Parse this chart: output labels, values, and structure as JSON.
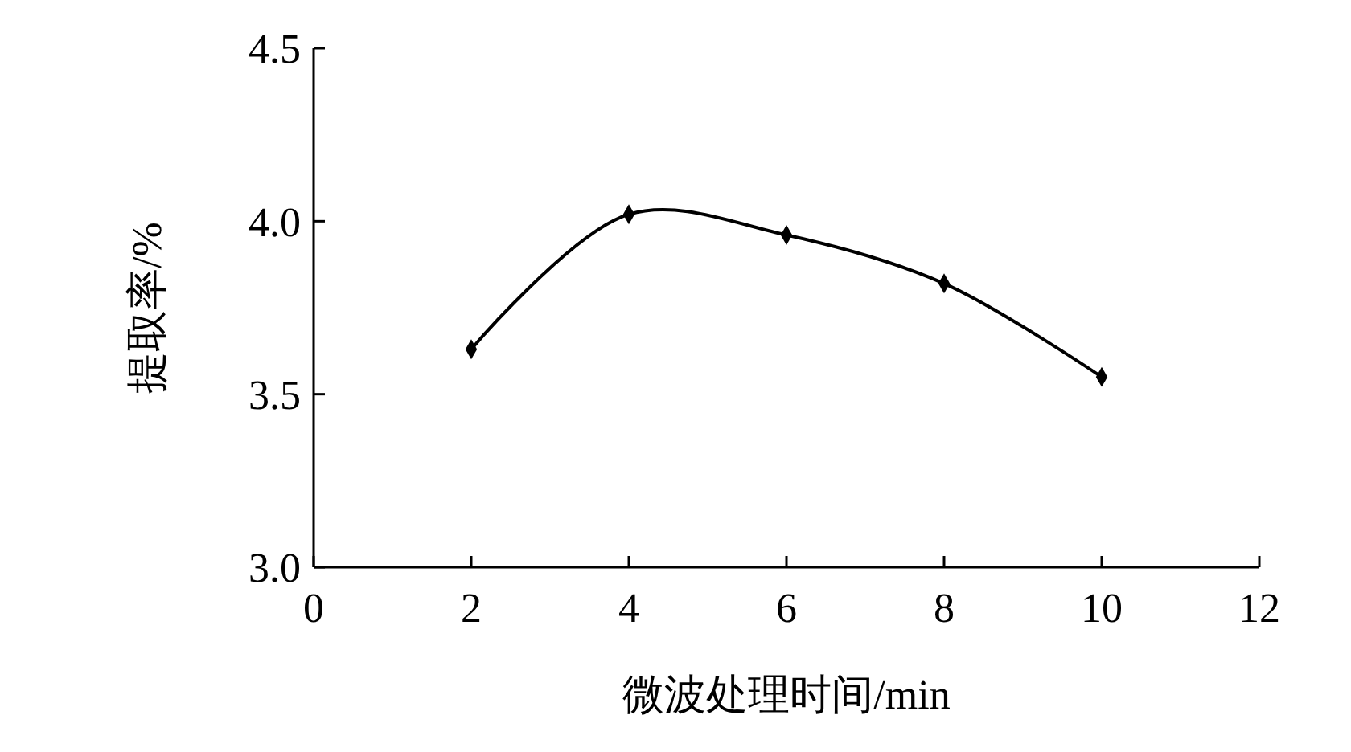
{
  "chart_data": {
    "type": "line",
    "xlabel": "微波处理时间/min",
    "ylabel": "提取率/%",
    "x": [
      2,
      4,
      6,
      8,
      10
    ],
    "series": [
      {
        "color": "#000000",
        "values": [
          3.63,
          4.02,
          3.96,
          3.82,
          3.55
        ]
      }
    ],
    "xlim": [
      0,
      12
    ],
    "xticks": [
      0,
      2,
      4,
      6,
      8,
      10,
      12
    ],
    "ylim": [
      3.0,
      4.5
    ],
    "yticks": [
      {
        "value": 3.0,
        "label": "3.0"
      },
      {
        "value": 3.5,
        "label": "3.5"
      },
      {
        "value": 4.0,
        "label": "4.0"
      },
      {
        "value": 4.5,
        "label": "4.5"
      }
    ],
    "grid": false,
    "marker": "diamond",
    "line_style": "solid"
  }
}
